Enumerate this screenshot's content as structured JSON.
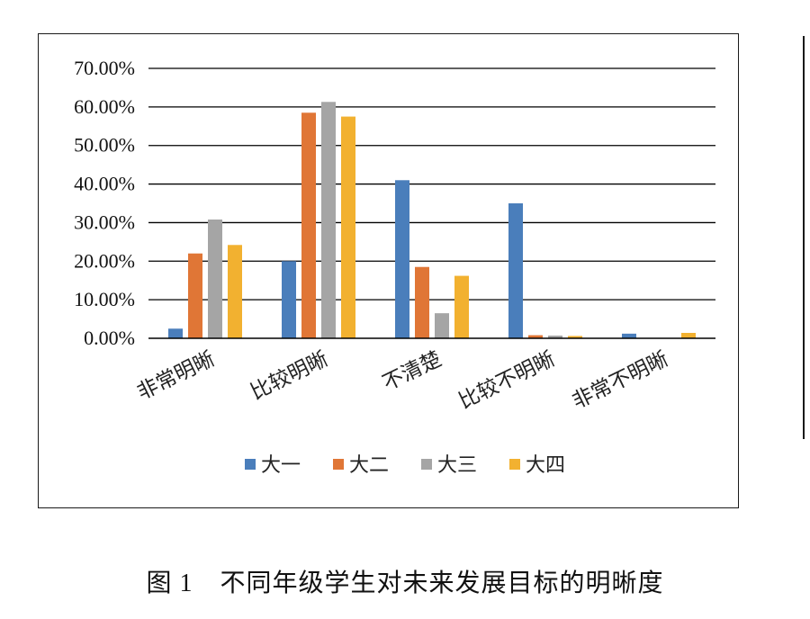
{
  "chart_data": {
    "type": "bar",
    "categories": [
      "非常明晰",
      "比较明晰",
      "不清楚",
      "比较不明晰",
      "非常不明晰"
    ],
    "series": [
      {
        "name": "大一",
        "color": "#4a7ebb",
        "values": [
          2.5,
          20.0,
          41.0,
          35.0,
          1.2
        ]
      },
      {
        "name": "大二",
        "color": "#e07636",
        "values": [
          22.0,
          58.5,
          18.5,
          0.8,
          0.0
        ]
      },
      {
        "name": "大三",
        "color": "#a5a5a5",
        "values": [
          30.8,
          61.3,
          6.5,
          0.7,
          0.0
        ]
      },
      {
        "name": "大四",
        "color": "#f2b130",
        "values": [
          24.2,
          57.5,
          16.2,
          0.6,
          1.4
        ]
      }
    ],
    "yticks": [
      "0.00%",
      "10.00%",
      "20.00%",
      "30.00%",
      "40.00%",
      "50.00%",
      "60.00%",
      "70.00%"
    ],
    "ylim": [
      0,
      70
    ],
    "grid": true,
    "legend_position": "bottom"
  },
  "caption": {
    "figure_number": "图 1",
    "title": "不同年级学生对未来发展目标的明晰度"
  }
}
